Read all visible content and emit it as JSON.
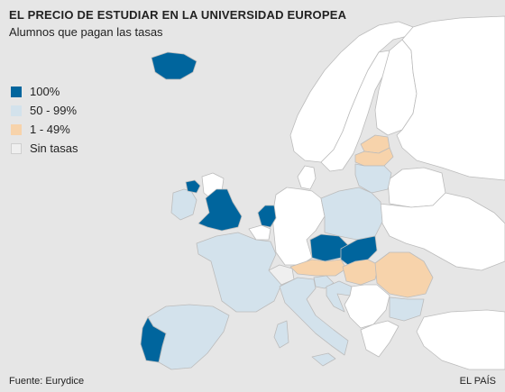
{
  "header": {
    "title": "EL PRECIO DE ESTUDIAR EN LA UNIVERSIDAD EUROPEA",
    "subtitle": "Alumnos que pagan las tasas"
  },
  "legend": [
    {
      "label": "100%",
      "color": "#00659d"
    },
    {
      "label": "50 - 99%",
      "color": "#d3e2ec"
    },
    {
      "label": "1 - 49%",
      "color": "#f7d3ab"
    },
    {
      "label": "Sin tasas",
      "color": "#efefef"
    }
  ],
  "colors": {
    "sea": "#e6e6e6",
    "no_data": "#ffffff",
    "border": "#bcbcbc"
  },
  "regions": {
    "full": [
      "Iceland",
      "Northern Ireland",
      "England",
      "Netherlands",
      "Czech Republic",
      "Slovakia",
      "Portugal"
    ],
    "partial_majority": [
      "France",
      "Spain",
      "Italy",
      "Poland",
      "Lithuania",
      "Ireland",
      "Slovenia",
      "Croatia",
      "Bulgaria"
    ],
    "partial_minority": [
      "Latvia",
      "Estonia",
      "Austria",
      "Hungary",
      "Romania"
    ],
    "no_fees": [
      "Switzerland"
    ]
  },
  "footer": {
    "source": "Fuente: Eurydice",
    "credit": "EL PAÍS"
  }
}
